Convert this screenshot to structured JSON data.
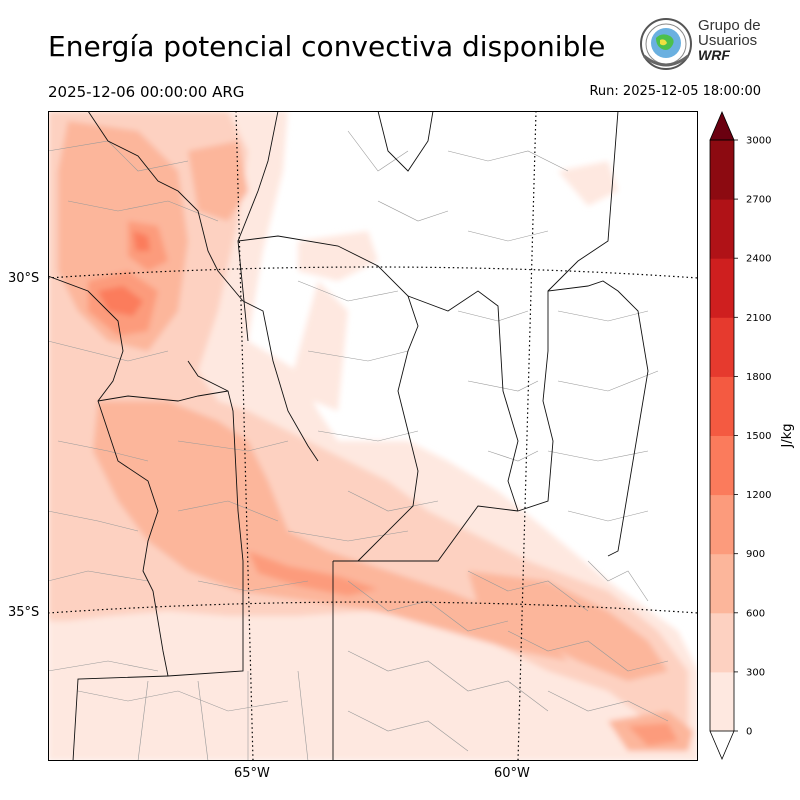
{
  "header": {
    "title": "Energía potencial convectiva disponible",
    "valid_time": "2025-12-06 00:00:00 ARG",
    "run_time": "Run: 2025-12-05 18:00:00"
  },
  "logo": {
    "line1": "Grupo de",
    "line2": "Usuarios",
    "line3": "WRF"
  },
  "map": {
    "lat_labels": [
      "30°S",
      "35°S"
    ],
    "lon_labels": [
      "65°W",
      "60°W"
    ],
    "field": "CAPE"
  },
  "colorbar": {
    "unit": "J/kg",
    "ticks": [
      "0",
      "300",
      "600",
      "900",
      "1200",
      "1500",
      "1800",
      "2100",
      "2400",
      "2700",
      "3000"
    ],
    "colors": [
      "#fee8e0",
      "#fdd1c1",
      "#fcb69b",
      "#fc9b7c",
      "#fb7b5c",
      "#f45a41",
      "#e63a2e",
      "#cf1f1f",
      "#b01217",
      "#8c0a11",
      "#6a0010"
    ],
    "extend": "max"
  },
  "chart_data": {
    "type": "heatmap",
    "title": "Energía potencial convectiva disponible",
    "colorbar_label": "J/kg",
    "levels": [
      0,
      300,
      600,
      900,
      1200,
      1500,
      1800,
      2100,
      2400,
      2700,
      3000
    ],
    "lat_ticks": [
      "30°S",
      "35°S"
    ],
    "lon_ticks": [
      "65°W",
      "60°W"
    ]
  }
}
